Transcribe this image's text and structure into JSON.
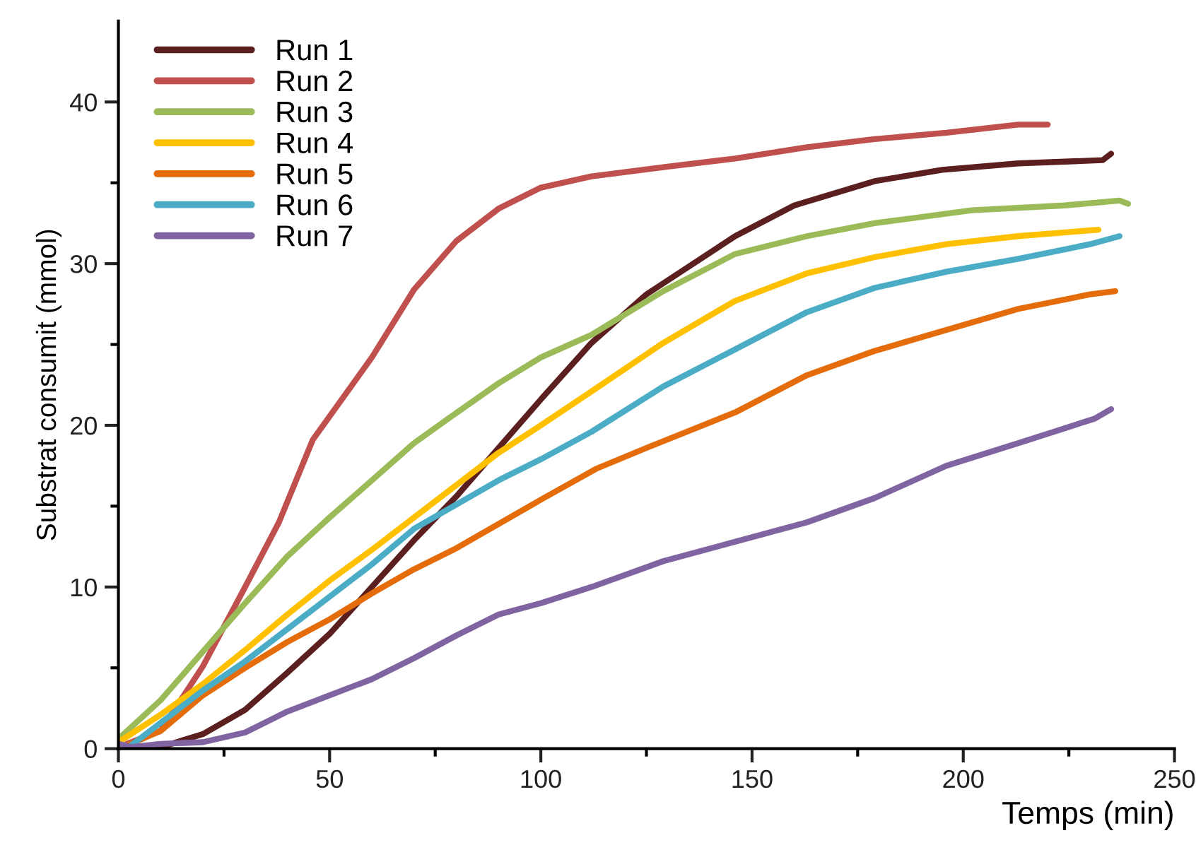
{
  "chart_data": {
    "type": "line",
    "xlabel": "Temps (min)",
    "ylabel": "Substrat consumit (mmol)",
    "xlim": [
      0,
      250
    ],
    "xticks": [
      0,
      {
        "value": 25,
        "label": null
      },
      50,
      {
        "value": 75,
        "label": null
      },
      100,
      {
        "value": 125,
        "label": null
      },
      150,
      {
        "value": 175,
        "label": null
      },
      200,
      {
        "value": 225,
        "label": null
      },
      250
    ],
    "ylim": [
      0,
      45
    ],
    "yticks": [
      0,
      {
        "value": 5,
        "label": null
      },
      10,
      {
        "value": 15,
        "label": null
      },
      20,
      {
        "value": 25,
        "label": null
      },
      30,
      {
        "value": 35,
        "label": null
      },
      40
    ],
    "grid": false,
    "legend": "top left",
    "marker": "none",
    "line_style": "solid",
    "series": [
      {
        "name": "Run 1",
        "color": "#5c1f1f",
        "x": [
          5,
          10,
          20,
          30,
          40,
          50,
          60,
          70,
          80,
          90,
          100,
          112,
          125,
          146,
          160,
          179,
          195,
          213,
          233,
          235
        ],
        "values": [
          0,
          0.1,
          0.9,
          2.4,
          4.7,
          7.1,
          10,
          12.9,
          15.6,
          18.6,
          21.6,
          25.1,
          28.1,
          31.7,
          33.6,
          35.1,
          35.8,
          36.2,
          36.4,
          36.8
        ]
      },
      {
        "name": "Run 2",
        "color": "#c0504d",
        "x": [
          2,
          10,
          20,
          30,
          38,
          46,
          60,
          70,
          80,
          90,
          100,
          112,
          130,
          146,
          163,
          179,
          196,
          213,
          220
        ],
        "values": [
          0.3,
          1.1,
          5.1,
          10,
          14,
          19.1,
          24.2,
          28.4,
          31.4,
          33.4,
          34.7,
          35.4,
          36,
          36.5,
          37.2,
          37.7,
          38.1,
          38.6,
          38.6
        ]
      },
      {
        "name": "Run 3",
        "color": "#9bbb59",
        "x": [
          0,
          10,
          20,
          30,
          40,
          50,
          60,
          70,
          78,
          90,
          100,
          112,
          129,
          146,
          163,
          179,
          202,
          224,
          237,
          239
        ],
        "values": [
          0.6,
          3,
          6,
          9,
          11.9,
          14.3,
          16.6,
          18.9,
          20.4,
          22.6,
          24.2,
          25.6,
          28.3,
          30.6,
          31.7,
          32.5,
          33.3,
          33.6,
          33.9,
          33.7
        ]
      },
      {
        "name": "Run 4",
        "color": "#ffc000",
        "x": [
          0,
          10,
          20,
          30,
          40,
          50,
          60,
          70,
          80,
          90,
          100,
          112,
          129,
          146,
          163,
          179,
          196,
          213,
          232
        ],
        "values": [
          0.4,
          2.1,
          4,
          6.1,
          8.3,
          10.4,
          12.3,
          14.3,
          16.3,
          18.3,
          20,
          22.1,
          25.1,
          27.7,
          29.4,
          30.4,
          31.2,
          31.7,
          32.1
        ]
      },
      {
        "name": "Run 5",
        "color": "#e46c0a",
        "x": [
          2,
          10,
          20,
          30,
          40,
          50,
          60,
          70,
          80,
          90,
          100,
          113,
          125,
          146,
          163,
          179,
          196,
          213,
          230,
          236
        ],
        "values": [
          0.2,
          1.1,
          3.3,
          5,
          6.6,
          8,
          9.6,
          11.1,
          12.4,
          13.9,
          15.4,
          17.3,
          18.6,
          20.8,
          23.1,
          24.6,
          25.9,
          27.2,
          28.1,
          28.3
        ]
      },
      {
        "name": "Run 6",
        "color": "#4bacc6",
        "x": [
          3,
          10,
          20,
          30,
          40,
          50,
          60,
          70,
          80,
          90,
          100,
          112,
          129,
          146,
          163,
          179,
          196,
          213,
          230,
          237
        ],
        "values": [
          0.2,
          1.6,
          3.6,
          5.4,
          7.4,
          9.4,
          11.4,
          13.6,
          15.1,
          16.6,
          17.9,
          19.6,
          22.4,
          24.7,
          27,
          28.5,
          29.5,
          30.3,
          31.2,
          31.7
        ]
      },
      {
        "name": "Run 7",
        "color": "#8064a2",
        "x": [
          0,
          3,
          10,
          20,
          30,
          40,
          50,
          60,
          70,
          80,
          90,
          100,
          112,
          129,
          146,
          163,
          179,
          196,
          213,
          231,
          235
        ],
        "values": [
          0.3,
          0.1,
          0.3,
          0.4,
          1,
          2.3,
          3.3,
          4.3,
          5.6,
          7,
          8.3,
          9,
          10,
          11.6,
          12.8,
          14,
          15.5,
          17.5,
          18.9,
          20.4,
          21
        ]
      }
    ]
  }
}
